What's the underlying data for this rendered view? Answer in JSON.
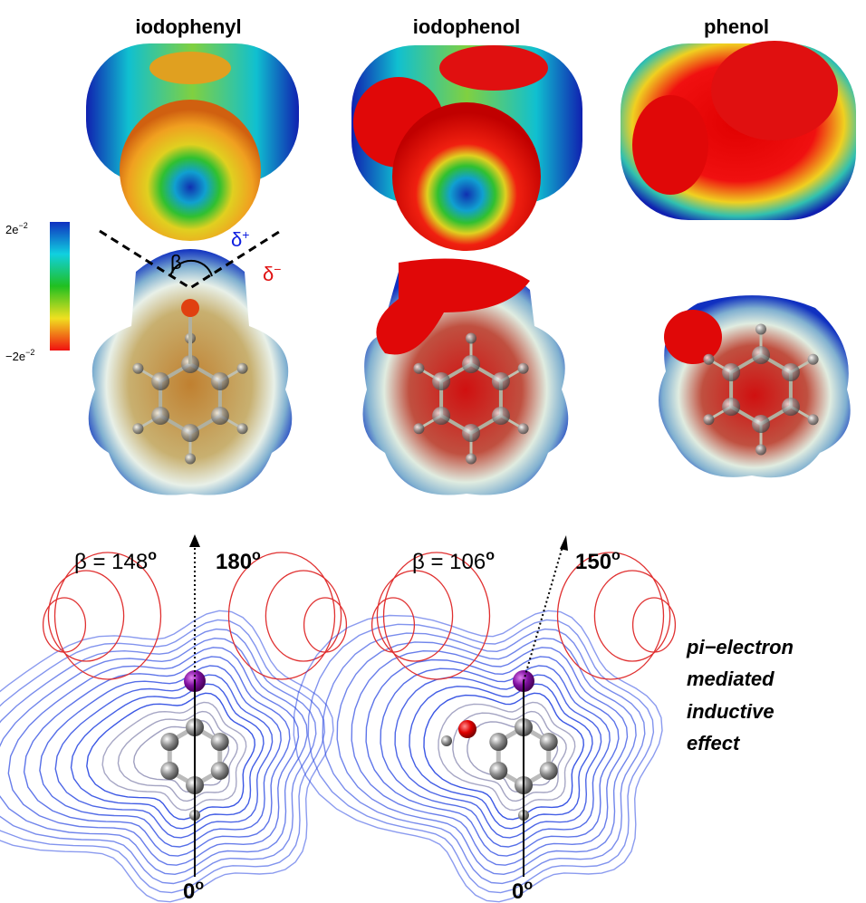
{
  "columns": [
    {
      "title": "iodophenyl"
    },
    {
      "title": "iodophenol"
    },
    {
      "title": "phenol"
    }
  ],
  "colorbar": {
    "max": {
      "base": "2e",
      "sup": "−2"
    },
    "min": {
      "base": "−2e",
      "sup": "−2"
    }
  },
  "annotations": {
    "beta": "β",
    "delta_plus": {
      "base": "δ",
      "sup": "+"
    },
    "delta_minus": {
      "base": "δ",
      "sup": "−"
    }
  },
  "contours": [
    {
      "beta_label": "β = 148",
      "beta_sup": "o",
      "top_angle": "180",
      "top_sup": "o",
      "bottom_angle": "0",
      "bottom_sup": "o"
    },
    {
      "beta_label": "β = 106",
      "beta_sup": "o",
      "top_angle": "150",
      "top_sup": "o",
      "bottom_angle": "0",
      "bottom_sup": "o"
    }
  ],
  "caption": [
    "pi−electron",
    "mediated",
    "inductive",
    "effect"
  ]
}
